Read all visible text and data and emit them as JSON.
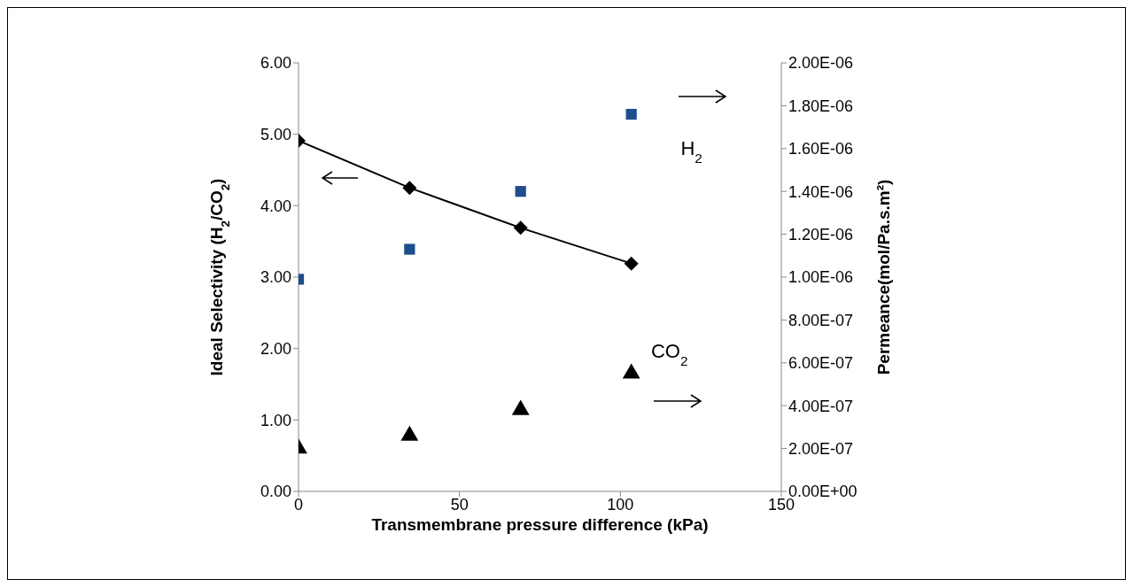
{
  "chart_data": {
    "type": "line",
    "xlabel": "Transmembrane pressure difference (kPa)",
    "ylabel": "Ideal Selectivity (H$_{2}$/CO$_{2}$)",
    "y2label": "Permeance(mol/Pa.s.m²)",
    "xlim": [
      0,
      150
    ],
    "xticks": [
      0,
      50,
      100,
      150
    ],
    "ylim": [
      0,
      6
    ],
    "yticks": [
      {
        "value": 0,
        "label": "0.00"
      },
      {
        "value": 1,
        "label": "1.00"
      },
      {
        "value": 2,
        "label": "2.00"
      },
      {
        "value": 3,
        "label": "3.00"
      },
      {
        "value": 4,
        "label": "4.00"
      },
      {
        "value": 5,
        "label": "5.00"
      },
      {
        "value": 6,
        "label": "6.00"
      }
    ],
    "y2lim": [
      0,
      2e-06
    ],
    "y2ticks": [
      {
        "value": 0,
        "label": "0.00E+00"
      },
      {
        "value": 2e-07,
        "label": "2.00E-07"
      },
      {
        "value": 4e-07,
        "label": "4.00E-07"
      },
      {
        "value": 6e-07,
        "label": "6.00E-07"
      },
      {
        "value": 8e-07,
        "label": "8.00E-07"
      },
      {
        "value": 1e-06,
        "label": "1.00E-06"
      },
      {
        "value": 1.2e-06,
        "label": "1.20E-06"
      },
      {
        "value": 1.4e-06,
        "label": "1.40E-06"
      },
      {
        "value": 1.6e-06,
        "label": "1.60E-06"
      },
      {
        "value": 1.8e-06,
        "label": "1.80E-06"
      },
      {
        "value": 2e-06,
        "label": "2.00E-06"
      }
    ],
    "x": [
      0,
      34.5,
      69,
      103.4
    ],
    "series": [
      {
        "color": "#000000",
        "marker": "diamond",
        "values": [
          4.91,
          4.25,
          3.69,
          3.19
        ]
      },
      {
        "type": "scatter",
        "name": "H$_{2}$",
        "axis": "y2",
        "color": "#1f4e8c",
        "marker": "square",
        "values": [
          9.9e-07,
          1.13e-06,
          1.4e-06,
          1.76e-06
        ]
      },
      {
        "type": "scatter",
        "name": "CO$_{2}$",
        "axis": "y2",
        "color": "#000000",
        "marker": "triangle",
        "values": [
          2e-07,
          2.6e-07,
          3.8e-07,
          5.5e-07
        ]
      }
    ]
  }
}
